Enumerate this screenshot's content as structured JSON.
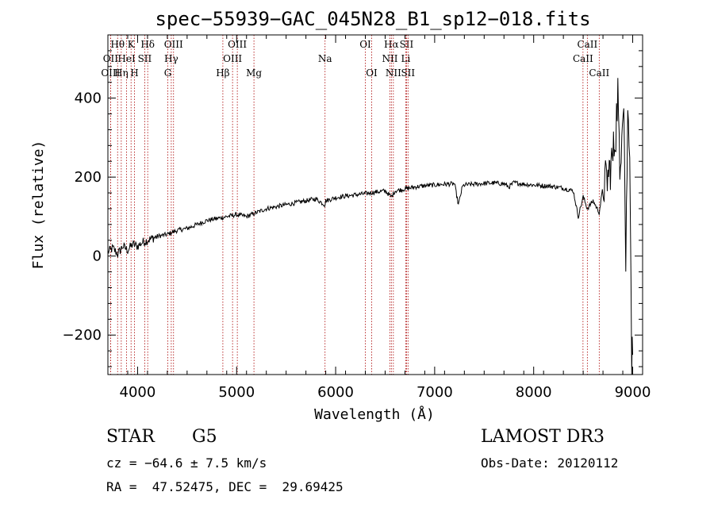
{
  "chart_data": {
    "type": "line",
    "title": "spec−55939−GAC_045N28_B1_sp12−018.fits",
    "xlabel": "Wavelength (Å)",
    "ylabel": "Flux (relative)",
    "xlim": [
      3700,
      9100
    ],
    "ylim": [
      -300,
      560
    ],
    "grid": false,
    "x_ticks": [
      4000,
      5000,
      6000,
      7000,
      8000,
      9000
    ],
    "x_tick_labels": [
      "4000",
      "5000",
      "6000",
      "7000",
      "8000",
      "9000"
    ],
    "y_ticks": [
      -200,
      0,
      200,
      400
    ],
    "y_tick_labels": [
      "−200",
      "0",
      "200",
      "400"
    ],
    "series": [
      {
        "name": "spectrum",
        "x": [
          3700,
          3750,
          3800,
          3850,
          3900,
          3950,
          4000,
          4050,
          4100,
          4200,
          4300,
          4400,
          4500,
          4600,
          4700,
          4800,
          4900,
          5000,
          5100,
          5200,
          5300,
          5400,
          5500,
          5600,
          5700,
          5800,
          5890,
          5900,
          6000,
          6100,
          6200,
          6300,
          6400,
          6500,
          6563,
          6600,
          6700,
          6800,
          6900,
          7000,
          7100,
          7200,
          7240,
          7280,
          7300,
          7400,
          7500,
          7600,
          7700,
          7750,
          7800,
          7900,
          8000,
          8100,
          8200,
          8300,
          8400,
          8450,
          8500,
          8542,
          8600,
          8662,
          8700,
          8750,
          8800,
          8830,
          8850,
          8870,
          8890,
          8910,
          8930,
          8950,
          8970,
          8990,
          9000
        ],
        "y": [
          10,
          20,
          5,
          25,
          15,
          30,
          25,
          35,
          40,
          50,
          55,
          65,
          70,
          80,
          90,
          95,
          100,
          105,
          100,
          110,
          120,
          125,
          130,
          135,
          140,
          145,
          130,
          140,
          148,
          152,
          155,
          158,
          162,
          165,
          150,
          165,
          170,
          175,
          178,
          180,
          182,
          183,
          130,
          175,
          180,
          182,
          184,
          185,
          183,
          175,
          186,
          182,
          180,
          178,
          176,
          172,
          165,
          100,
          150,
          120,
          140,
          110,
          175,
          200,
          250,
          320,
          420,
          180,
          350,
          420,
          -20,
          350,
          300,
          -250,
          -250
        ]
      }
    ],
    "line_markers": [
      {
        "name": "Hθ",
        "wavelength": 3798,
        "row": 1
      },
      {
        "name": "OII",
        "wavelength": 3727,
        "row": 2
      },
      {
        "name": "OIII",
        "wavelength": 3727,
        "row": 3
      },
      {
        "name": "K",
        "wavelength": 3934,
        "row": 1
      },
      {
        "name": "HeI",
        "wavelength": 3889,
        "row": 2
      },
      {
        "name": "Hη",
        "wavelength": 3835,
        "row": 3
      },
      {
        "name": "Hδ",
        "wavelength": 4102,
        "row": 1
      },
      {
        "name": "SII",
        "wavelength": 4072,
        "row": 2
      },
      {
        "name": "H",
        "wavelength": 3968,
        "row": 3
      },
      {
        "name": "OIII",
        "wavelength": 4363,
        "row": 1
      },
      {
        "name": "Hγ",
        "wavelength": 4340,
        "row": 2
      },
      {
        "name": "G",
        "wavelength": 4305,
        "row": 3
      },
      {
        "name": "OIII",
        "wavelength": 5007,
        "row": 1
      },
      {
        "name": "OIII",
        "wavelength": 4959,
        "row": 2
      },
      {
        "name": "Hβ",
        "wavelength": 4861,
        "row": 3
      },
      {
        "name": "Mg",
        "wavelength": 5175,
        "row": 3
      },
      {
        "name": "Na",
        "wavelength": 5893,
        "row": 2
      },
      {
        "name": "OI",
        "wavelength": 6300,
        "row": 1
      },
      {
        "name": "OI",
        "wavelength": 6364,
        "row": 3
      },
      {
        "name": "Hα",
        "wavelength": 6563,
        "row": 1
      },
      {
        "name": "NII",
        "wavelength": 6548,
        "row": 2
      },
      {
        "name": "NII",
        "wavelength": 6583,
        "row": 3
      },
      {
        "name": "SII",
        "wavelength": 6716,
        "row": 1
      },
      {
        "name": "Li",
        "wavelength": 6708,
        "row": 2
      },
      {
        "name": "SII",
        "wavelength": 6731,
        "row": 3
      },
      {
        "name": "CaII",
        "wavelength": 8542,
        "row": 1
      },
      {
        "name": "CaII",
        "wavelength": 8498,
        "row": 2
      },
      {
        "name": "CaII",
        "wavelength": 8662,
        "row": 3
      }
    ]
  },
  "info": {
    "class": "STAR",
    "subclass": "G5",
    "survey": "LAMOST DR3",
    "cz": "cz = −64.6 ± 7.5 km/s",
    "obs_date": "Obs-Date: 20120112",
    "coords": "RA =  47.52475, DEC =  29.69425"
  },
  "colors": {
    "spectrum": "#000000",
    "marker_lines": "#aa0000",
    "background": "#ffffff"
  }
}
